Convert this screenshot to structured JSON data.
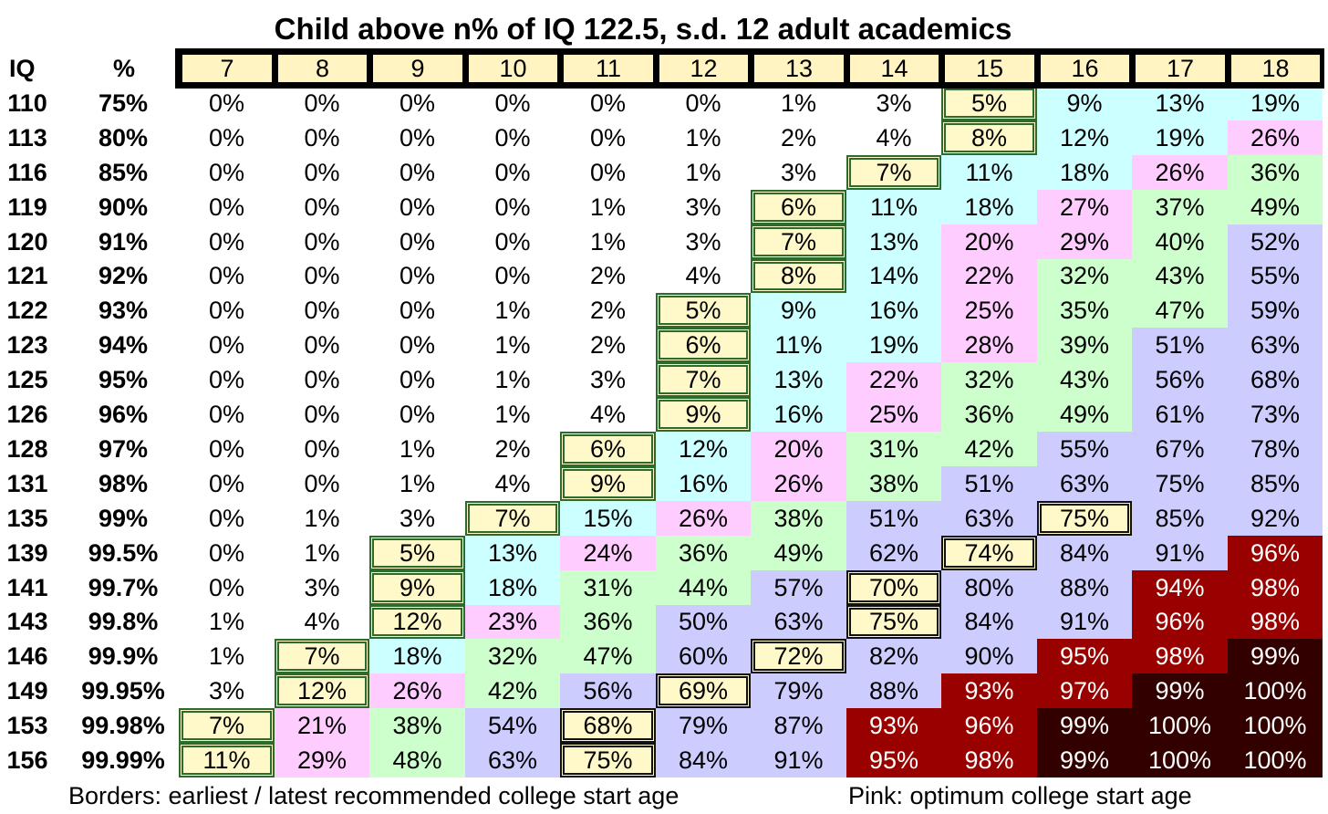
{
  "chart_data": {
    "type": "table",
    "title": "Child above n% of IQ 122.5, s.d. 12 adult academics",
    "row_header_iq": "IQ",
    "row_header_pct": "%",
    "columns": [
      "7",
      "8",
      "9",
      "10",
      "11",
      "12",
      "13",
      "14",
      "15",
      "16",
      "17",
      "18"
    ],
    "rows": [
      {
        "iq": "110",
        "pct": "75%",
        "values": [
          0,
          0,
          0,
          0,
          0,
          0,
          1,
          3,
          5,
          9,
          13,
          19
        ]
      },
      {
        "iq": "113",
        "pct": "80%",
        "values": [
          0,
          0,
          0,
          0,
          0,
          1,
          2,
          4,
          8,
          12,
          19,
          26
        ]
      },
      {
        "iq": "116",
        "pct": "85%",
        "values": [
          0,
          0,
          0,
          0,
          0,
          1,
          3,
          7,
          11,
          18,
          26,
          36
        ]
      },
      {
        "iq": "119",
        "pct": "90%",
        "values": [
          0,
          0,
          0,
          0,
          1,
          3,
          6,
          11,
          18,
          27,
          37,
          49
        ]
      },
      {
        "iq": "120",
        "pct": "91%",
        "values": [
          0,
          0,
          0,
          0,
          1,
          3,
          7,
          13,
          20,
          29,
          40,
          52
        ]
      },
      {
        "iq": "121",
        "pct": "92%",
        "values": [
          0,
          0,
          0,
          0,
          2,
          4,
          8,
          14,
          22,
          32,
          43,
          55
        ]
      },
      {
        "iq": "122",
        "pct": "93%",
        "values": [
          0,
          0,
          0,
          1,
          2,
          5,
          9,
          16,
          25,
          35,
          47,
          59
        ]
      },
      {
        "iq": "123",
        "pct": "94%",
        "values": [
          0,
          0,
          0,
          1,
          2,
          6,
          11,
          19,
          28,
          39,
          51,
          63
        ]
      },
      {
        "iq": "125",
        "pct": "95%",
        "values": [
          0,
          0,
          0,
          1,
          3,
          7,
          13,
          22,
          32,
          43,
          56,
          68
        ]
      },
      {
        "iq": "126",
        "pct": "96%",
        "values": [
          0,
          0,
          0,
          1,
          4,
          9,
          16,
          25,
          36,
          49,
          61,
          73
        ]
      },
      {
        "iq": "128",
        "pct": "97%",
        "values": [
          0,
          0,
          1,
          2,
          6,
          12,
          20,
          31,
          42,
          55,
          67,
          78
        ]
      },
      {
        "iq": "131",
        "pct": "98%",
        "values": [
          0,
          0,
          1,
          4,
          9,
          16,
          26,
          38,
          51,
          63,
          75,
          85
        ]
      },
      {
        "iq": "135",
        "pct": "99%",
        "values": [
          0,
          1,
          3,
          7,
          15,
          26,
          38,
          51,
          63,
          75,
          85,
          92
        ]
      },
      {
        "iq": "139",
        "pct": "99.5%",
        "values": [
          0,
          1,
          5,
          13,
          24,
          36,
          49,
          62,
          74,
          84,
          91,
          96
        ]
      },
      {
        "iq": "141",
        "pct": "99.7%",
        "values": [
          0,
          3,
          9,
          18,
          31,
          44,
          57,
          70,
          80,
          88,
          94,
          98
        ]
      },
      {
        "iq": "143",
        "pct": "99.8%",
        "values": [
          1,
          4,
          12,
          23,
          36,
          50,
          63,
          75,
          84,
          91,
          96,
          98
        ]
      },
      {
        "iq": "146",
        "pct": "99.9%",
        "values": [
          1,
          7,
          18,
          32,
          47,
          60,
          72,
          82,
          90,
          95,
          98,
          99
        ]
      },
      {
        "iq": "149",
        "pct": "99.95%",
        "values": [
          3,
          12,
          26,
          42,
          56,
          69,
          79,
          88,
          93,
          97,
          99,
          100
        ]
      },
      {
        "iq": "153",
        "pct": "99.98%",
        "values": [
          7,
          21,
          38,
          54,
          68,
          79,
          87,
          93,
          96,
          99,
          100,
          100
        ]
      },
      {
        "iq": "156",
        "pct": "99.99%",
        "values": [
          11,
          29,
          48,
          63,
          75,
          84,
          91,
          95,
          98,
          99,
          100,
          100
        ]
      }
    ],
    "earliest_border_cells": [
      [
        0,
        8
      ],
      [
        1,
        8
      ],
      [
        2,
        7
      ],
      [
        3,
        6
      ],
      [
        4,
        6
      ],
      [
        5,
        6
      ],
      [
        6,
        5
      ],
      [
        7,
        5
      ],
      [
        8,
        5
      ],
      [
        9,
        5
      ],
      [
        10,
        4
      ],
      [
        11,
        4
      ],
      [
        12,
        3
      ],
      [
        13,
        2
      ],
      [
        14,
        2
      ],
      [
        15,
        2
      ],
      [
        16,
        1
      ],
      [
        17,
        1
      ],
      [
        18,
        0
      ],
      [
        19,
        0
      ]
    ],
    "latest_border_cells": [
      [
        12,
        9
      ],
      [
        13,
        8
      ],
      [
        14,
        7
      ],
      [
        15,
        7
      ],
      [
        16,
        6
      ],
      [
        17,
        5
      ],
      [
        18,
        4
      ],
      [
        19,
        4
      ]
    ],
    "color_bands": [
      {
        "min": 0,
        "max": 4,
        "color": "#ffffff",
        "text": "#000000"
      },
      {
        "min": 5,
        "max": 19,
        "color": "#ccffff",
        "text": "#000000"
      },
      {
        "min": 20,
        "max": 29,
        "color": "#ffccff",
        "text": "#000000"
      },
      {
        "min": 30,
        "max": 49,
        "color": "#ccffcc",
        "text": "#000000"
      },
      {
        "min": 50,
        "max": 92,
        "color": "#ccccff",
        "text": "#000000"
      },
      {
        "min": 93,
        "max": 98,
        "color": "#990000",
        "text": "#ffffff"
      },
      {
        "min": 99,
        "max": 100,
        "color": "#330000",
        "text": "#ffffff"
      }
    ],
    "footer_left": "Borders: earliest / latest recommended college start age",
    "footer_right": "Pink: optimum college start age"
  }
}
